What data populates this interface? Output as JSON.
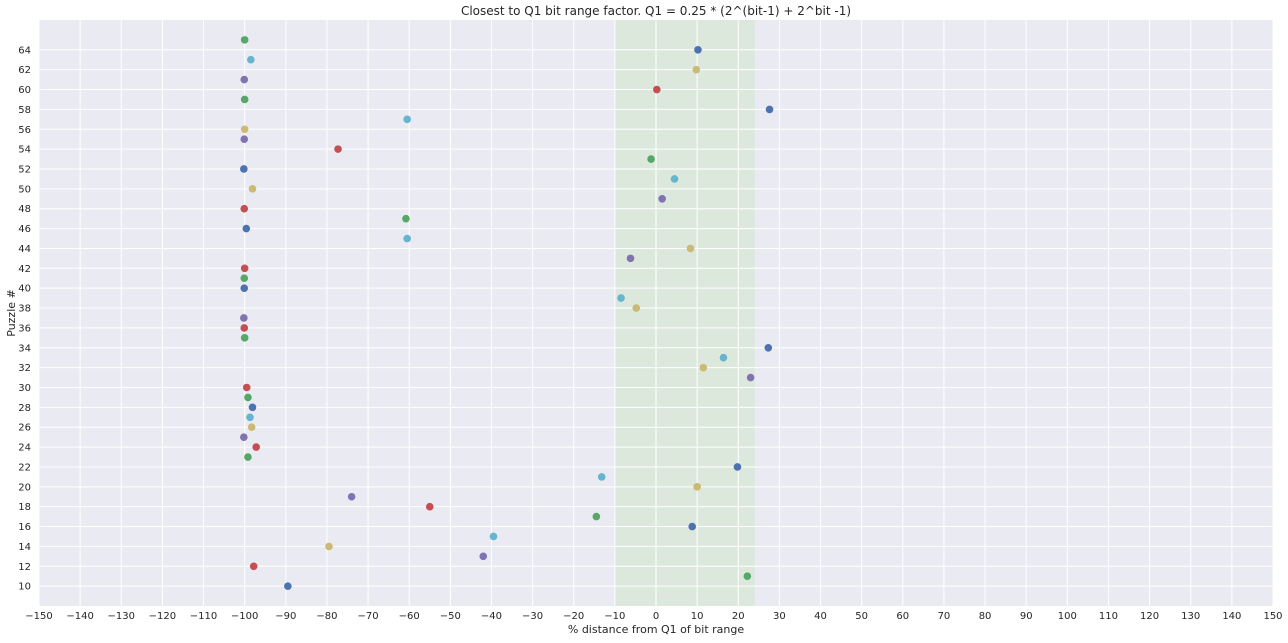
{
  "chart_data": {
    "type": "scatter",
    "title": "Closest to Q1 bit range factor. Q1 = 0.25 * (2^(bit-1) + 2^bit -1)",
    "xlabel": "% distance from Q1 of bit range",
    "ylabel": "Puzzle #",
    "xlim": [
      -150,
      150
    ],
    "ylim": [
      8,
      67
    ],
    "grid": true,
    "xticks": [
      -150,
      -140,
      -130,
      -120,
      -110,
      -100,
      -90,
      -80,
      -70,
      -60,
      -50,
      -40,
      -30,
      -20,
      -10,
      0,
      10,
      20,
      30,
      40,
      50,
      60,
      70,
      80,
      90,
      100,
      110,
      120,
      130,
      140,
      150
    ],
    "yticks": [
      10,
      12,
      14,
      16,
      18,
      20,
      22,
      24,
      26,
      28,
      30,
      32,
      34,
      36,
      38,
      40,
      42,
      44,
      46,
      48,
      50,
      52,
      54,
      56,
      58,
      60,
      62,
      64
    ],
    "shaded_band": {
      "x_from": -10,
      "x_to": 24,
      "color": "#dde8dc"
    },
    "colors": [
      "#4c72b0",
      "#55a868",
      "#c44e52",
      "#8172b2",
      "#ccb974",
      "#64b5cd"
    ],
    "points": [
      {
        "puzzle": 10,
        "x": -89.5
      },
      {
        "puzzle": 11,
        "x": 22.2
      },
      {
        "puzzle": 12,
        "x": -97.8
      },
      {
        "puzzle": 13,
        "x": -42
      },
      {
        "puzzle": 14,
        "x": -79.5
      },
      {
        "puzzle": 15,
        "x": -39.5
      },
      {
        "puzzle": 16,
        "x": 8.8
      },
      {
        "puzzle": 17,
        "x": -14.5
      },
      {
        "puzzle": 18,
        "x": -55
      },
      {
        "puzzle": 19,
        "x": -74
      },
      {
        "puzzle": 20,
        "x": 10
      },
      {
        "puzzle": 21,
        "x": -13.2
      },
      {
        "puzzle": 22,
        "x": 19.8
      },
      {
        "puzzle": 23,
        "x": -99.2
      },
      {
        "puzzle": 24,
        "x": -97.2
      },
      {
        "puzzle": 25,
        "x": -100.2
      },
      {
        "puzzle": 26,
        "x": -98.3
      },
      {
        "puzzle": 27,
        "x": -98.7
      },
      {
        "puzzle": 28,
        "x": -98.1
      },
      {
        "puzzle": 29,
        "x": -99.2
      },
      {
        "puzzle": 30,
        "x": -99.5
      },
      {
        "puzzle": 31,
        "x": 23
      },
      {
        "puzzle": 32,
        "x": 11.5
      },
      {
        "puzzle": 33,
        "x": 16.4
      },
      {
        "puzzle": 34,
        "x": 27.3
      },
      {
        "puzzle": 35,
        "x": -100
      },
      {
        "puzzle": 36,
        "x": -100.1
      },
      {
        "puzzle": 37,
        "x": -100.2
      },
      {
        "puzzle": 38,
        "x": -4.8
      },
      {
        "puzzle": 39,
        "x": -8.5
      },
      {
        "puzzle": 40,
        "x": -100.1
      },
      {
        "puzzle": 41,
        "x": -100.1
      },
      {
        "puzzle": 42,
        "x": -100
      },
      {
        "puzzle": 43,
        "x": -6.2
      },
      {
        "puzzle": 44,
        "x": 8.4
      },
      {
        "puzzle": 45,
        "x": -60.5
      },
      {
        "puzzle": 46,
        "x": -99.6
      },
      {
        "puzzle": 47,
        "x": -60.8
      },
      {
        "puzzle": 48,
        "x": -100.1
      },
      {
        "puzzle": 49,
        "x": 1.5
      },
      {
        "puzzle": 50,
        "x": -98.1
      },
      {
        "puzzle": 51,
        "x": 4.5
      },
      {
        "puzzle": 52,
        "x": -100.2
      },
      {
        "puzzle": 53,
        "x": -1.2
      },
      {
        "puzzle": 54,
        "x": -77.3
      },
      {
        "puzzle": 55,
        "x": -100.1
      },
      {
        "puzzle": 56,
        "x": -100
      },
      {
        "puzzle": 57,
        "x": -60.5
      },
      {
        "puzzle": 58,
        "x": 27.6
      },
      {
        "puzzle": 59,
        "x": -100
      },
      {
        "puzzle": 60,
        "x": 0.2
      },
      {
        "puzzle": 61,
        "x": -100.1
      },
      {
        "puzzle": 62,
        "x": 9.8
      },
      {
        "puzzle": 63,
        "x": -98.5
      },
      {
        "puzzle": 64,
        "x": 10.2
      },
      {
        "puzzle": 65,
        "x": -100
      }
    ]
  }
}
